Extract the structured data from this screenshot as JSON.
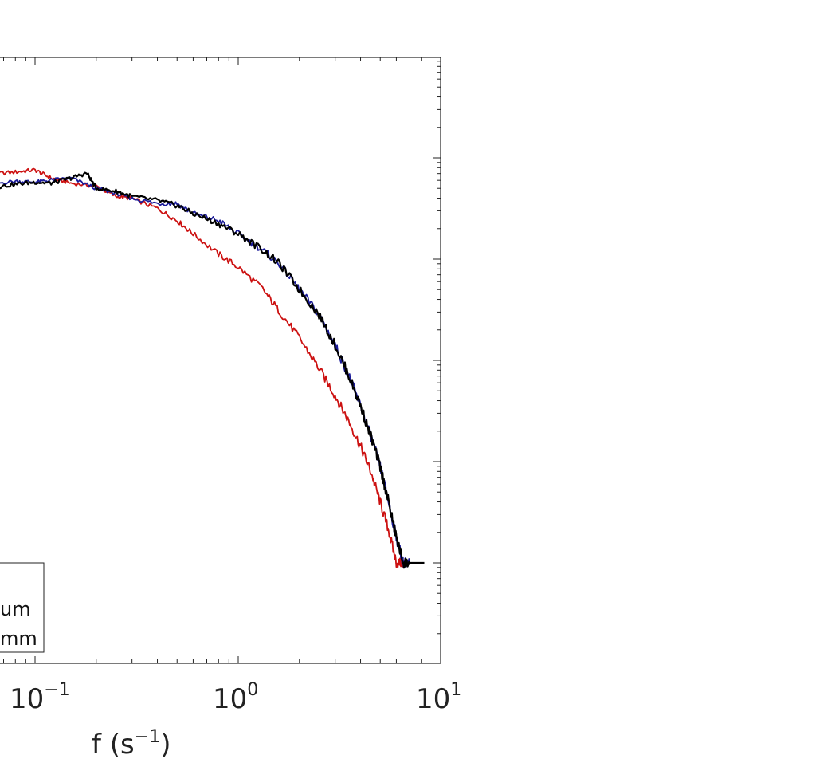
{
  "chart_data": {
    "type": "line",
    "title": "",
    "xlabel_base": "f (s",
    "xlabel_exp": "−1",
    "xlabel_tail": ")",
    "xscale": "log",
    "yscale": "log",
    "xlim": [
      0.04,
      8.0
    ],
    "ylim_decades": [
      -6.0,
      0.0
    ],
    "grid": false,
    "x_tick_labels": [
      {
        "value": 0.1,
        "base": "10",
        "exp": "−1"
      },
      {
        "value": 1,
        "base": "10",
        "exp": "0"
      },
      {
        "value": 10,
        "base": "10",
        "exp": "1"
      }
    ],
    "legend": {
      "placement": "bottom-left (clipped)",
      "entries": [
        "um",
        "mm"
      ]
    },
    "series": [
      {
        "color": "#cc1111",
        "x": [
          0.04,
          0.06,
          0.08,
          0.1,
          0.12,
          0.15,
          0.2,
          0.25,
          0.3,
          0.4,
          0.5,
          0.6,
          0.8,
          1.0,
          1.3,
          1.6,
          2.0,
          2.5,
          3.0,
          3.5,
          4.0,
          4.5,
          5.0,
          5.5,
          6.0,
          6.5
        ],
        "y_decades": [
          -1.2,
          -1.16,
          -1.14,
          -1.12,
          -1.2,
          -1.25,
          -1.28,
          -1.38,
          -1.4,
          -1.5,
          -1.62,
          -1.75,
          -1.95,
          -2.08,
          -2.28,
          -2.52,
          -2.78,
          -3.08,
          -3.35,
          -3.6,
          -3.85,
          -4.1,
          -4.4,
          -4.68,
          -5.0,
          -5.0
        ]
      },
      {
        "color": "#1a1a99",
        "x": [
          0.04,
          0.06,
          0.08,
          0.1,
          0.12,
          0.15,
          0.2,
          0.25,
          0.3,
          0.4,
          0.5,
          0.6,
          0.8,
          1.0,
          1.3,
          1.6,
          2.0,
          2.5,
          3.0,
          3.5,
          4.0,
          4.5,
          5.0,
          5.5,
          6.0,
          6.5,
          7.0
        ],
        "y_decades": [
          -1.3,
          -1.26,
          -1.23,
          -1.24,
          -1.22,
          -1.2,
          -1.3,
          -1.35,
          -1.4,
          -1.45,
          -1.45,
          -1.55,
          -1.62,
          -1.75,
          -1.9,
          -2.05,
          -2.3,
          -2.55,
          -2.85,
          -3.15,
          -3.45,
          -3.75,
          -4.05,
          -4.4,
          -4.75,
          -5.0,
          -5.0
        ]
      },
      {
        "color": "#000000",
        "x": [
          0.04,
          0.06,
          0.08,
          0.1,
          0.12,
          0.15,
          0.18,
          0.2,
          0.25,
          0.3,
          0.4,
          0.5,
          0.6,
          0.8,
          1.0,
          1.3,
          1.6,
          2.0,
          2.5,
          3.0,
          3.5,
          4.0,
          4.5,
          5.0,
          5.5,
          6.0,
          6.5,
          7.0
        ],
        "y_decades": [
          -1.35,
          -1.3,
          -1.26,
          -1.24,
          -1.25,
          -1.2,
          -1.15,
          -1.3,
          -1.33,
          -1.38,
          -1.42,
          -1.47,
          -1.55,
          -1.65,
          -1.75,
          -1.9,
          -2.05,
          -2.3,
          -2.55,
          -2.85,
          -3.15,
          -3.45,
          -3.75,
          -4.05,
          -4.4,
          -4.75,
          -5.0,
          -5.0
        ]
      }
    ]
  }
}
